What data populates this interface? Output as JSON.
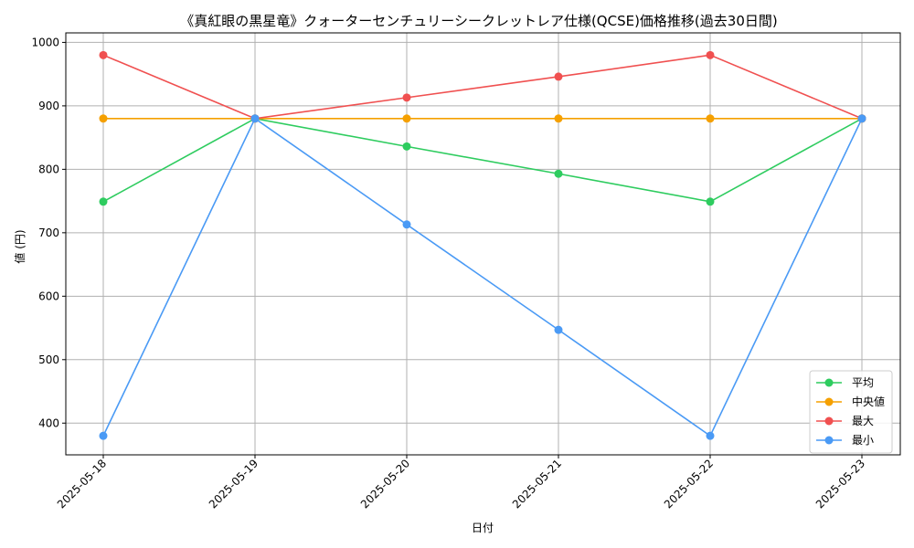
{
  "chart_data": {
    "type": "line",
    "title": "《真紅眼の黒星竜》クォーターセンチュリーシークレットレア仕様(QCSE)価格推移(過去30日間)",
    "xlabel": "日付",
    "ylabel": "値 (円)",
    "categories": [
      "2025-05-18",
      "2025-05-19",
      "2025-05-20",
      "2025-05-21",
      "2025-05-22",
      "2025-05-23"
    ],
    "ylim": [
      350,
      1015
    ],
    "yticks": [
      400,
      500,
      600,
      700,
      800,
      900,
      1000
    ],
    "grid": true,
    "legend_position": "bottom-right",
    "series": [
      {
        "name": "平均",
        "color": "#2ecc5f",
        "values": [
          749,
          880,
          836,
          793,
          749,
          880
        ]
      },
      {
        "name": "中央値",
        "color": "#f5a000",
        "values": [
          880,
          880,
          880,
          880,
          880,
          880
        ]
      },
      {
        "name": "最大",
        "color": "#f05050",
        "values": [
          980,
          880,
          913,
          946,
          980,
          880
        ]
      },
      {
        "name": "最小",
        "color": "#4a9af5",
        "values": [
          380,
          880,
          713,
          547,
          380,
          880
        ]
      }
    ]
  }
}
